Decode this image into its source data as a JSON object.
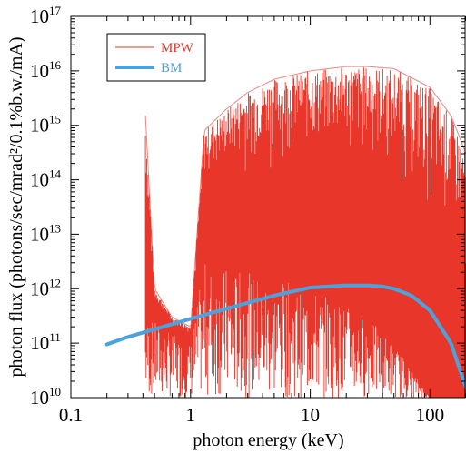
{
  "chart_data": {
    "type": "line",
    "x_scale": "log",
    "y_scale": "log",
    "xlim": [
      0.1,
      200
    ],
    "ylim": [
      10000000000.0,
      1e+17
    ],
    "xlabel": "photon energy (keV)",
    "ylabel": "photon flux (photons/sec/mrad²/0.1%b.w./mA)",
    "x_ticks": [
      "0.1",
      "1",
      "10",
      "100"
    ],
    "y_ticks": [
      {
        "base": "10",
        "exp": "10"
      },
      {
        "base": "10",
        "exp": "11"
      },
      {
        "base": "10",
        "exp": "12"
      },
      {
        "base": "10",
        "exp": "13"
      },
      {
        "base": "10",
        "exp": "14"
      },
      {
        "base": "10",
        "exp": "15"
      },
      {
        "base": "10",
        "exp": "16"
      },
      {
        "base": "10",
        "exp": "17"
      }
    ],
    "legend_position": "top-left",
    "series": [
      {
        "name": "MPW",
        "color": "#e8362a",
        "style": "dense harmonic spectrum",
        "envelope_x": [
          0.42,
          0.5,
          0.7,
          1.0,
          1.3,
          2,
          3,
          5,
          10,
          20,
          30,
          50,
          100,
          150,
          200
        ],
        "envelope_y": [
          1500000000000000.0,
          1000000000000.0,
          300000000000.0,
          200000000000.0,
          800000000000000.0,
          2000000000000000.0,
          4000000000000000.0,
          7000000000000000.0,
          1e+16,
          1.2e+16,
          1.2e+16,
          1.1e+16,
          5000000000000000.0,
          1500000000000000.0,
          300000000000000.0
        ],
        "floor_y": [
          300000000000.0,
          250000000000.0,
          150000000000.0,
          100000000000.0,
          3000000000000.0,
          2500000000000.0,
          2000000000000.0,
          1500000000000.0,
          1000000000000.0,
          500000000000.0,
          300000000000.0,
          100000000000.0,
          10000000000.0,
          10000000000.0,
          10000000000.0
        ]
      },
      {
        "name": "BM",
        "color": "#4ba3dd",
        "x": [
          0.2,
          0.3,
          0.5,
          1,
          2,
          5,
          10,
          20,
          30,
          40,
          50,
          70,
          100,
          150,
          200
        ],
        "y": [
          95000000000.0,
          130000000000.0,
          180000000000.0,
          280000000000.0,
          430000000000.0,
          750000000000.0,
          1050000000000.0,
          1150000000000.0,
          1150000000000.0,
          1100000000000.0,
          1000000000000.0,
          750000000000.0,
          400000000000.0,
          100000000000.0,
          15000000000.0
        ]
      }
    ]
  }
}
